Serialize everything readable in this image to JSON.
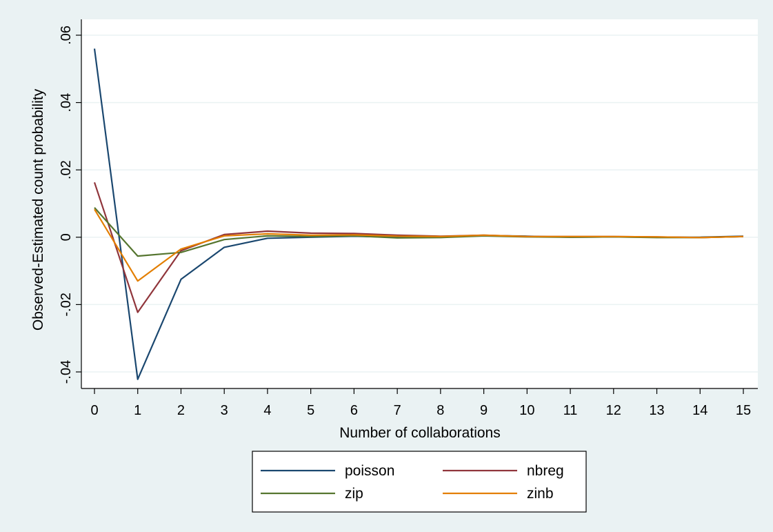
{
  "chart_data": {
    "type": "line",
    "xlabel": "Number of collaborations",
    "ylabel": "Observed-Estimated count probability",
    "x": [
      0,
      1,
      2,
      3,
      4,
      5,
      6,
      7,
      8,
      9,
      10,
      11,
      12,
      13,
      14,
      15
    ],
    "xlim": [
      0,
      15
    ],
    "ylim": [
      -0.04,
      0.06
    ],
    "yticks": [
      -0.04,
      -0.02,
      0,
      0.02,
      0.04,
      0.06
    ],
    "ytick_labels": [
      "-.04",
      "-.02",
      "0",
      ".02",
      ".04",
      ".06"
    ],
    "xtick_labels": [
      "0",
      "1",
      "2",
      "3",
      "4",
      "5",
      "6",
      "7",
      "8",
      "9",
      "10",
      "11",
      "12",
      "13",
      "14",
      "15"
    ],
    "grid": true,
    "legend_position": "bottom",
    "series": [
      {
        "name": "poisson",
        "color": "#1a476f",
        "values": [
          0.056,
          -0.0422,
          -0.0125,
          -0.003,
          -0.0003,
          0.0,
          0.0003,
          0.0,
          0.0,
          0.0005,
          0.0003,
          0.0,
          0.0001,
          0.0,
          0.0,
          0.0003
        ]
      },
      {
        "name": "nbreg",
        "color": "#90353b",
        "values": [
          0.0163,
          -0.0223,
          -0.004,
          0.0008,
          0.0018,
          0.0012,
          0.0011,
          0.0006,
          0.0003,
          0.0006,
          0.0002,
          0.0002,
          0.0002,
          0.0001,
          -0.0001,
          0.0002
        ]
      },
      {
        "name": "zip",
        "color": "#55752f",
        "values": [
          0.0088,
          -0.0056,
          -0.0045,
          -0.0007,
          0.0004,
          0.0002,
          0.0004,
          -0.0002,
          -0.0001,
          0.0004,
          0.0001,
          0.0,
          0.0001,
          -0.0001,
          -0.0001,
          0.0002
        ]
      },
      {
        "name": "zinb",
        "color": "#e37e00",
        "values": [
          0.0083,
          -0.013,
          -0.0035,
          0.0004,
          0.001,
          0.0006,
          0.0007,
          0.0003,
          0.0002,
          0.0006,
          0.0002,
          0.0002,
          0.0002,
          0.0001,
          -0.0001,
          0.0002
        ]
      }
    ]
  }
}
